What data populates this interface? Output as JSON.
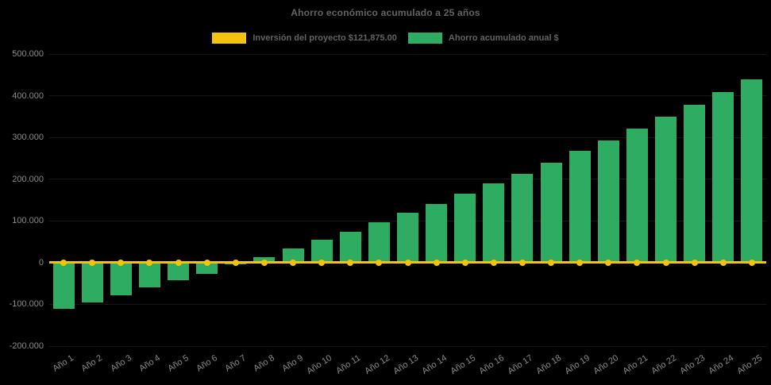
{
  "title": "Ahorro económico acumulado a 25 años",
  "legend": {
    "items": [
      {
        "label": "Inversión del proyecto $121,875.00",
        "color": "#F2C40D",
        "series_type": "line"
      },
      {
        "label": "Ahorro acumulado anual $",
        "color": "#2EAC62",
        "series_type": "bar"
      }
    ]
  },
  "colors": {
    "background": "#000000",
    "investment_line": "#F2C40D",
    "savings_bar": "#2EAC62",
    "axis_text": "#8A8A8A",
    "title_text": "#636363",
    "gridline": "#161616"
  },
  "chart_data": {
    "type": "bar",
    "title": "Ahorro económico acumulado a 25 años",
    "xlabel": "",
    "ylabel": "",
    "ylim": [
      -200000,
      500000
    ],
    "grid": false,
    "legend_position": "top-center",
    "background": "#000000",
    "categories": [
      "Año 1",
      "Año 2",
      "Año 3",
      "Año 4",
      "Año 5",
      "Año 6",
      "Año 7",
      "Año 8",
      "Año 9",
      "Año 10",
      "Año 11",
      "Año 12",
      "Año 13",
      "Año 14",
      "Año 15",
      "Año 16",
      "Año 17",
      "Año 18",
      "Año 19",
      "Año 20",
      "Año 21",
      "Año 22",
      "Año 23",
      "Año 24",
      "Año 25"
    ],
    "yticks": [
      {
        "value": 500000,
        "label": "500.000"
      },
      {
        "value": 400000,
        "label": "400.000"
      },
      {
        "value": 300000,
        "label": "300.000"
      },
      {
        "value": 200000,
        "label": "200.000"
      },
      {
        "value": 100000,
        "label": "100.000"
      },
      {
        "value": 0,
        "label": "0"
      },
      {
        "value": -100000,
        "label": "-100.000"
      },
      {
        "value": -200000,
        "label": "-200.000"
      }
    ],
    "series": [
      {
        "name": "Inversión del proyecto $121,875.00",
        "type": "line",
        "color": "#F2C40D",
        "marker": "circle",
        "values": [
          0,
          0,
          0,
          0,
          0,
          0,
          0,
          0,
          0,
          0,
          0,
          0,
          0,
          0,
          0,
          0,
          0,
          0,
          0,
          0,
          0,
          0,
          0,
          0,
          0
        ]
      },
      {
        "name": "Ahorro acumulado anual $",
        "type": "bar",
        "color": "#2EAC62",
        "values": [
          -110000,
          -95000,
          -78000,
          -59000,
          -42000,
          -26000,
          -5000,
          13000,
          34000,
          55000,
          74000,
          97000,
          119000,
          141000,
          165000,
          189000,
          213000,
          239000,
          268000,
          293000,
          322000,
          350000,
          379000,
          409000,
          440000
        ]
      }
    ]
  }
}
